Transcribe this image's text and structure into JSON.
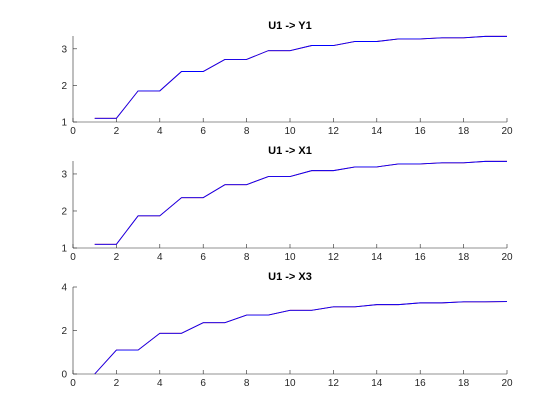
{
  "chart_data": [
    {
      "type": "line",
      "title": "U1 -> Y1",
      "xlim": [
        0,
        20
      ],
      "ylim": [
        1,
        3.35
      ],
      "xticks": [
        0,
        2,
        4,
        6,
        8,
        10,
        12,
        14,
        16,
        18,
        20
      ],
      "yticks": [
        1,
        2,
        3
      ],
      "grid": false,
      "series": [
        {
          "color": "#ff0000",
          "x": [
            1,
            2,
            2,
            3,
            3,
            4,
            4,
            5,
            5,
            6,
            6,
            7,
            7,
            8,
            8,
            9,
            9,
            10,
            10,
            11,
            11,
            12,
            12,
            13,
            13,
            14,
            14,
            15,
            15,
            16,
            16,
            17,
            17,
            18,
            18,
            19,
            19,
            20
          ],
          "y": [
            1.1,
            1.1,
            1.1,
            1.85,
            1.85,
            1.85,
            1.85,
            2.38,
            2.38,
            2.38,
            2.38,
            2.71,
            2.71,
            2.71,
            2.71,
            2.95,
            2.95,
            2.95,
            2.95,
            3.09,
            3.09,
            3.09,
            3.09,
            3.2,
            3.2,
            3.2,
            3.2,
            3.27,
            3.27,
            3.27,
            3.27,
            3.3,
            3.3,
            3.3,
            3.3,
            3.34,
            3.34,
            3.34
          ]
        },
        {
          "color": "#0000ff",
          "x": [
            1,
            2,
            3,
            4,
            5,
            6,
            7,
            8,
            9,
            10,
            11,
            12,
            13,
            14,
            15,
            16,
            17,
            18,
            19,
            20
          ],
          "y": [
            1.1,
            1.1,
            1.85,
            1.85,
            2.38,
            2.38,
            2.71,
            2.71,
            2.95,
            2.95,
            3.09,
            3.09,
            3.2,
            3.2,
            3.27,
            3.27,
            3.3,
            3.3,
            3.34,
            3.34
          ]
        }
      ]
    },
    {
      "type": "line",
      "title": "U1 -> X1",
      "xlim": [
        0,
        20
      ],
      "ylim": [
        1,
        3.35
      ],
      "xticks": [
        0,
        2,
        4,
        6,
        8,
        10,
        12,
        14,
        16,
        18,
        20
      ],
      "yticks": [
        1,
        2,
        3
      ],
      "grid": false,
      "series": [
        {
          "color": "#ff0000",
          "x": [
            1,
            2,
            2,
            3,
            3,
            4,
            4,
            5,
            5,
            6,
            6,
            7,
            7,
            8,
            8,
            9,
            9,
            10,
            10,
            11,
            11,
            12,
            12,
            13,
            13,
            14,
            14,
            15,
            15,
            16,
            16,
            17,
            17,
            18,
            18,
            19,
            19,
            20
          ],
          "y": [
            1.1,
            1.1,
            1.1,
            1.87,
            1.87,
            1.87,
            1.87,
            2.36,
            2.36,
            2.36,
            2.36,
            2.71,
            2.71,
            2.71,
            2.71,
            2.93,
            2.93,
            2.93,
            2.93,
            3.09,
            3.09,
            3.09,
            3.09,
            3.19,
            3.19,
            3.19,
            3.19,
            3.27,
            3.27,
            3.27,
            3.27,
            3.3,
            3.3,
            3.3,
            3.3,
            3.34,
            3.34,
            3.34
          ]
        },
        {
          "color": "#0000ff",
          "x": [
            1,
            2,
            3,
            4,
            5,
            6,
            7,
            8,
            9,
            10,
            11,
            12,
            13,
            14,
            15,
            16,
            17,
            18,
            19,
            20
          ],
          "y": [
            1.1,
            1.1,
            1.87,
            1.87,
            2.36,
            2.36,
            2.71,
            2.71,
            2.93,
            2.93,
            3.09,
            3.09,
            3.19,
            3.19,
            3.27,
            3.27,
            3.3,
            3.3,
            3.34,
            3.34
          ]
        }
      ]
    },
    {
      "type": "line",
      "title": "U1 -> X3",
      "xlim": [
        0,
        20
      ],
      "ylim": [
        0,
        4
      ],
      "xticks": [
        0,
        2,
        4,
        6,
        8,
        10,
        12,
        14,
        16,
        18,
        20
      ],
      "yticks": [
        0,
        2,
        4
      ],
      "grid": false,
      "series": [
        {
          "color": "#ff0000",
          "x": [
            1,
            2,
            2,
            3,
            3,
            4,
            4,
            5,
            5,
            6,
            6,
            7,
            7,
            8,
            8,
            9,
            9,
            10,
            10,
            11,
            11,
            12,
            12,
            13,
            13,
            14,
            14,
            15,
            15,
            16,
            16,
            17,
            17,
            18,
            18,
            19,
            19,
            20
          ],
          "y": [
            0.0,
            1.1,
            1.1,
            1.1,
            1.1,
            1.87,
            1.87,
            1.87,
            1.87,
            2.36,
            2.36,
            2.36,
            2.36,
            2.71,
            2.71,
            2.71,
            2.71,
            2.93,
            2.93,
            2.93,
            2.93,
            3.09,
            3.09,
            3.09,
            3.09,
            3.19,
            3.19,
            3.19,
            3.19,
            3.27,
            3.27,
            3.27,
            3.27,
            3.32,
            3.32,
            3.32,
            3.32,
            3.33
          ]
        },
        {
          "color": "#0000ff",
          "x": [
            1,
            2,
            3,
            4,
            5,
            6,
            7,
            8,
            9,
            10,
            11,
            12,
            13,
            14,
            15,
            16,
            17,
            18,
            19,
            20
          ],
          "y": [
            0.0,
            1.1,
            1.1,
            1.87,
            1.87,
            2.36,
            2.36,
            2.71,
            2.71,
            2.93,
            2.93,
            3.09,
            3.09,
            3.19,
            3.19,
            3.27,
            3.27,
            3.32,
            3.32,
            3.33
          ]
        }
      ]
    }
  ]
}
